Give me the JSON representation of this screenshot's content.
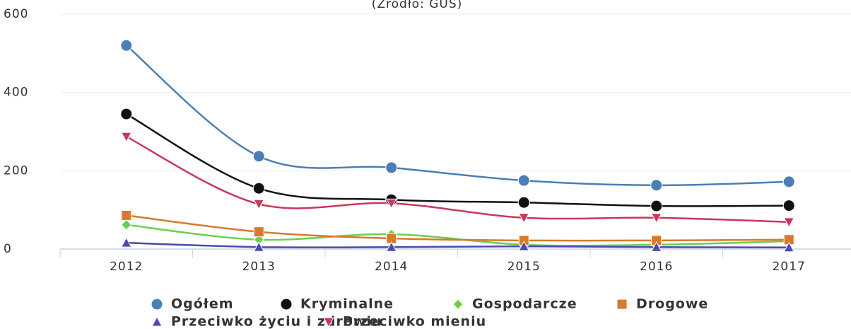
{
  "chart_data": {
    "type": "line",
    "subtitle": "(Źródło: GUS)",
    "categories": [
      "2012",
      "2013",
      "2014",
      "2015",
      "2016",
      "2017"
    ],
    "ylim": [
      0,
      600
    ],
    "yticks": [
      0,
      200,
      400,
      600
    ],
    "grid": true,
    "series": [
      {
        "name": "Ogółem",
        "color": "#4a7fb5",
        "marker": "circle",
        "values": [
          520,
          237,
          208,
          175,
          163,
          172
        ]
      },
      {
        "name": "Kryminalne",
        "color": "#111111",
        "marker": "circle",
        "values": [
          345,
          155,
          126,
          119,
          110,
          111
        ]
      },
      {
        "name": "Gospodarcze",
        "color": "#6ccf4a",
        "marker": "diamond",
        "values": [
          62,
          24,
          38,
          11,
          11,
          20
        ]
      },
      {
        "name": "Drogowe",
        "color": "#d9792b",
        "marker": "square",
        "values": [
          86,
          44,
          27,
          22,
          22,
          24
        ]
      },
      {
        "name": "Przeciwko życiu i zdrowiu",
        "color": "#4a4ab0",
        "marker": "triangle",
        "values": [
          16,
          5,
          5,
          7,
          5,
          4
        ]
      },
      {
        "name": "Przeciwko mieniu",
        "color": "#c8385a",
        "marker": "triangle-down",
        "values": [
          287,
          115,
          117,
          80,
          80,
          69
        ]
      }
    ]
  }
}
